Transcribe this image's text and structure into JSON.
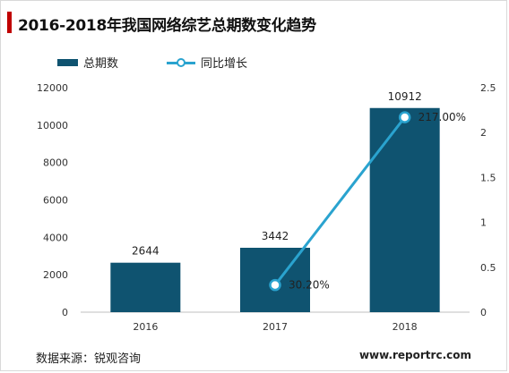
{
  "title": "2016-2018年我国网络综艺总期数变化趋势",
  "source": "数据来源：锐观咨询",
  "website": "www.reportrc.com",
  "colors": {
    "bar": "#0f5370",
    "line": "#2aa3cf",
    "accent": "#c00000"
  },
  "chart_data": {
    "type": "bar",
    "categories": [
      "2016",
      "2017",
      "2018"
    ],
    "series": [
      {
        "name": "总期数",
        "type": "bar",
        "axis": "left",
        "values": [
          2644,
          3442,
          10912
        ],
        "labels": [
          "2644",
          "3442",
          "10912"
        ]
      },
      {
        "name": "同比增长",
        "type": "line",
        "axis": "right",
        "values": [
          null,
          0.302,
          2.17
        ],
        "labels": [
          "",
          "30.20%",
          "217.00%"
        ]
      }
    ],
    "y_left": {
      "ylim": [
        0,
        12000
      ],
      "ticks": [
        "0",
        "2000",
        "4000",
        "6000",
        "8000",
        "10000",
        "12000"
      ]
    },
    "y_right": {
      "ylim": [
        0,
        2.5
      ],
      "ticks": [
        "0",
        "0.5",
        "1",
        "1.5",
        "2",
        "2.5"
      ]
    },
    "legend_position": "top-left",
    "grid": false
  }
}
